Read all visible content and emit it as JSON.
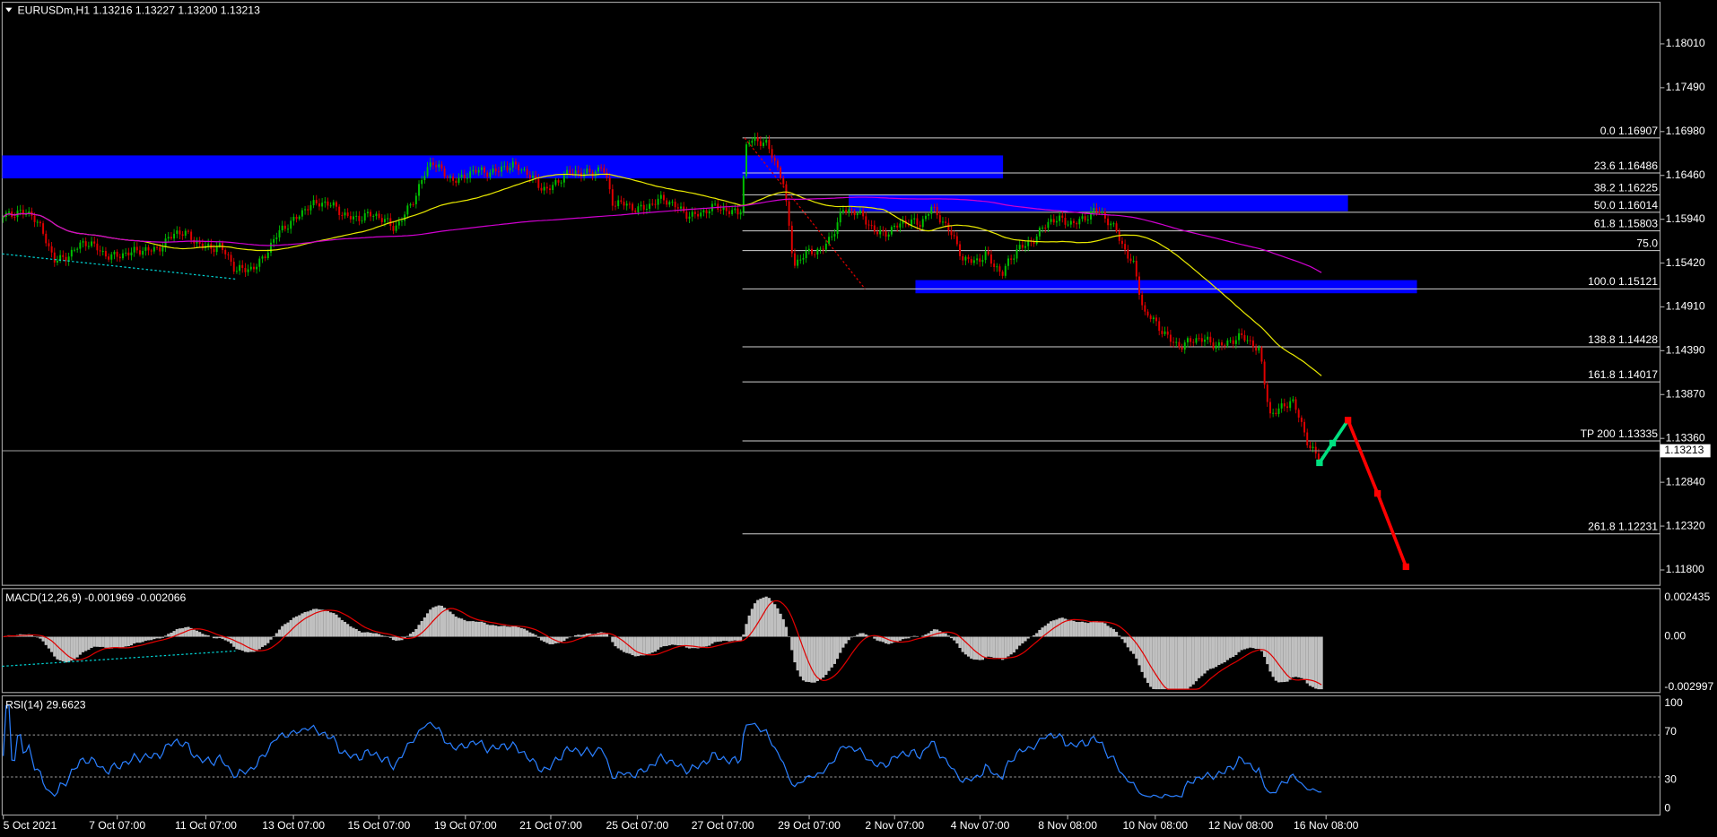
{
  "header": "EURUSDm,H1  1.13216 1.13227 1.13200 1.13213",
  "price_axis": [
    "1.18010",
    "1.17490",
    "1.16980",
    "1.16460",
    "1.15940",
    "1.15420",
    "1.14910",
    "1.14390",
    "1.13870",
    "1.13360",
    "1.12840",
    "1.12320",
    "1.11800"
  ],
  "current_price": "1.13213",
  "fib_levels": [
    "0.0 1.16907",
    "23.6 1.16486",
    "38.2 1.16225",
    "50.0 1.16014",
    "61.8 1.15803",
    "75.0",
    "100.0 1.15121",
    "138.8 1.14428",
    "161.8 1.14017",
    "TP 200 1.13335",
    "261.8 1.12231"
  ],
  "macd": {
    "label": "MACD(12,26,9) -0.001969 -0.002066",
    "axis": [
      "0.002435",
      "0.00",
      "-0.002997"
    ]
  },
  "rsi": {
    "label": "RSI(14) 29.6623",
    "axis": [
      "100",
      "70",
      "30",
      "0"
    ]
  },
  "time_axis": [
    "5 Oct 2021",
    "7 Oct 07:00",
    "11 Oct 07:00",
    "13 Oct 07:00",
    "15 Oct 07:00",
    "19 Oct 07:00",
    "21 Oct 07:00",
    "25 Oct 07:00",
    "27 Oct 07:00",
    "29 Oct 07:00",
    "2 Nov 07:00",
    "4 Nov 07:00",
    "8 Nov 08:00",
    "10 Nov 08:00",
    "12 Nov 08:00",
    "16 Nov 08:00"
  ]
}
